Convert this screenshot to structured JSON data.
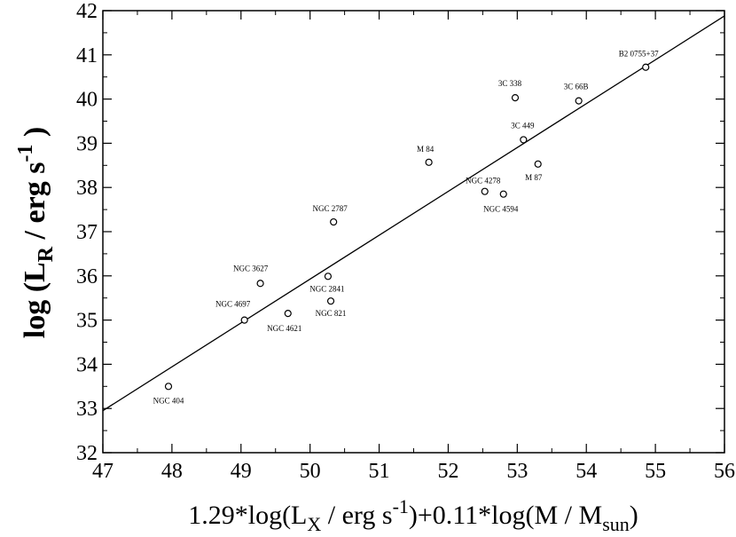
{
  "chart_data": {
    "type": "scatter",
    "xlabel": {
      "prefix": "1.29*log(L",
      "sub1": "X",
      "mid": " / erg s",
      "sup1": "-1",
      "suffix": ")+0.11*log(M / M",
      "sub2": "sun",
      "end": ")"
    },
    "ylabel": {
      "prefix": "log (L",
      "sub": "R",
      "mid": " / erg s",
      "sup": "-1",
      "end": " )"
    },
    "xlim": [
      47,
      56
    ],
    "ylim": [
      32,
      42
    ],
    "xticks": [
      47,
      48,
      49,
      50,
      51,
      52,
      53,
      54,
      55,
      56
    ],
    "yticks": [
      32,
      33,
      34,
      35,
      36,
      37,
      38,
      39,
      40,
      41,
      42
    ],
    "grid": false,
    "points": [
      {
        "name": "NGC 404",
        "x": 47.95,
        "y": 33.5
      },
      {
        "name": "NGC 4697",
        "x": 49.05,
        "y": 35.0
      },
      {
        "name": "NGC 3627",
        "x": 49.28,
        "y": 35.83
      },
      {
        "name": "NGC 4621",
        "x": 49.68,
        "y": 35.15
      },
      {
        "name": "NGC 2841",
        "x": 50.26,
        "y": 35.99
      },
      {
        "name": "NGC 821",
        "x": 50.3,
        "y": 35.43
      },
      {
        "name": "NGC 2787",
        "x": 50.34,
        "y": 37.22
      },
      {
        "name": "M 84",
        "x": 51.72,
        "y": 38.57
      },
      {
        "name": "NGC 4278",
        "x": 52.53,
        "y": 37.91
      },
      {
        "name": "NGC 4594",
        "x": 52.8,
        "y": 37.85
      },
      {
        "name": "3C 338",
        "x": 52.97,
        "y": 40.03
      },
      {
        "name": "3C 449",
        "x": 53.09,
        "y": 39.08
      },
      {
        "name": "M 87",
        "x": 53.3,
        "y": 38.53
      },
      {
        "name": "3C 66B",
        "x": 53.89,
        "y": 39.96
      },
      {
        "name": "B2 0755+37",
        "x": 54.86,
        "y": 40.72
      }
    ],
    "fit_line": {
      "x": [
        47,
        56
      ],
      "y": [
        32.95,
        41.88
      ]
    }
  }
}
